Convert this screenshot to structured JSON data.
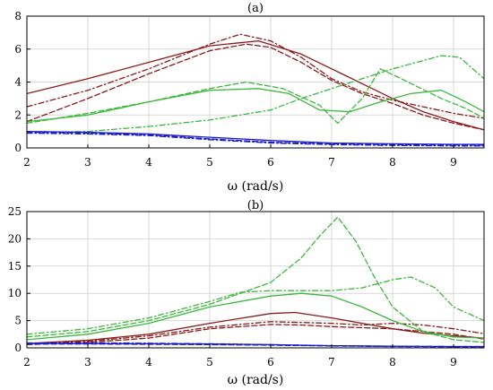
{
  "chart_data": [
    {
      "type": "line",
      "title": "(a)",
      "xlabel": "ω (rad/s)",
      "ylabel": "",
      "xlim": [
        2,
        9.5
      ],
      "ylim": [
        0,
        8
      ],
      "xticks": [
        "2",
        "3",
        "4",
        "5",
        "6",
        "7",
        "8",
        "9"
      ],
      "yticks": [
        "0",
        "2",
        "4",
        "6",
        "8"
      ],
      "grid": true,
      "series": [
        {
          "color": "#8b1a1a",
          "dash": "solid",
          "x": [
            2,
            3,
            4,
            5,
            5.8,
            6.5,
            7,
            7.5,
            8,
            8.5,
            9,
            9.5
          ],
          "y": [
            3.3,
            4.2,
            5.2,
            6.2,
            6.5,
            5.7,
            4.8,
            3.9,
            3.0,
            2.2,
            1.6,
            1.1
          ]
        },
        {
          "color": "#8b1a1a",
          "dash": "dashdot",
          "x": [
            2,
            3,
            4,
            5,
            5.5,
            6,
            6.5,
            7,
            7.5,
            8,
            8.5,
            9,
            9.5
          ],
          "y": [
            2.5,
            3.5,
            4.8,
            6.3,
            6.9,
            6.5,
            5.5,
            4.2,
            3.4,
            2.9,
            2.5,
            2.1,
            1.8
          ]
        },
        {
          "color": "#8b1a1a",
          "dash": "dashed",
          "x": [
            2,
            3,
            4,
            5,
            5.6,
            6,
            6.5,
            7,
            7.5,
            8,
            8.5,
            9,
            9.5
          ],
          "y": [
            1.6,
            3.0,
            4.5,
            5.9,
            6.3,
            6.1,
            5.2,
            4.1,
            3.3,
            2.7,
            2.0,
            1.5,
            1.1
          ]
        },
        {
          "color": "#3cb83c",
          "dash": "solid",
          "x": [
            2,
            3,
            4,
            5,
            5.8,
            6.3,
            6.8,
            7.3,
            7.8,
            8.3,
            8.8,
            9.2,
            9.5
          ],
          "y": [
            1.6,
            2.0,
            2.8,
            3.5,
            3.6,
            3.3,
            2.3,
            2.2,
            2.8,
            3.3,
            3.5,
            2.8,
            2.2
          ]
        },
        {
          "color": "#3cb83c",
          "dash": "dashed",
          "x": [
            2,
            3,
            4,
            5,
            5.6,
            6.2,
            6.8,
            7.1,
            7.5,
            7.8,
            8.2,
            8.8,
            9.2,
            9.5
          ],
          "y": [
            1.5,
            2.1,
            2.8,
            3.6,
            4.0,
            3.6,
            2.6,
            1.5,
            3.0,
            4.8,
            4.1,
            3.0,
            2.4,
            1.8
          ]
        },
        {
          "color": "#3cb83c",
          "dash": "dashdot",
          "x": [
            2,
            3,
            4,
            5,
            6,
            6.5,
            7,
            7.5,
            8,
            8.5,
            8.8,
            9.1,
            9.5
          ],
          "y": [
            0.9,
            1.0,
            1.3,
            1.7,
            2.3,
            3.0,
            3.6,
            4.2,
            4.8,
            5.3,
            5.6,
            5.5,
            4.2
          ]
        },
        {
          "color": "#1c1ccc",
          "dash": "solid",
          "x": [
            2,
            3,
            4,
            5,
            6,
            7,
            8,
            9,
            9.5
          ],
          "y": [
            1.0,
            0.95,
            0.85,
            0.65,
            0.45,
            0.3,
            0.25,
            0.22,
            0.22
          ]
        },
        {
          "color": "#1c1ccc",
          "dash": "dashed",
          "x": [
            2,
            3,
            4,
            5,
            6,
            7,
            8,
            9,
            9.5
          ],
          "y": [
            0.95,
            0.9,
            0.8,
            0.55,
            0.35,
            0.25,
            0.2,
            0.18,
            0.18
          ]
        },
        {
          "color": "#1c1ccc",
          "dash": "dashdot",
          "x": [
            2,
            3,
            4,
            5,
            6,
            7,
            8,
            9,
            9.5
          ],
          "y": [
            0.9,
            0.85,
            0.75,
            0.5,
            0.3,
            0.2,
            0.15,
            0.12,
            0.12
          ]
        }
      ]
    },
    {
      "type": "line",
      "title": "(b)",
      "xlabel": "ω (rad/s)",
      "ylabel": "",
      "xlim": [
        2,
        9.5
      ],
      "ylim": [
        0,
        25
      ],
      "xticks": [
        "2",
        "3",
        "4",
        "5",
        "6",
        "7",
        "8",
        "9"
      ],
      "yticks": [
        "0",
        "5",
        "10",
        "15",
        "20",
        "25"
      ],
      "grid": true,
      "series": [
        {
          "color": "#8b1a1a",
          "dash": "solid",
          "x": [
            2,
            3,
            4,
            5,
            6,
            6.4,
            7,
            7.5,
            8,
            8.5,
            9,
            9.5
          ],
          "y": [
            0.8,
            1.4,
            2.5,
            4.5,
            6.3,
            6.5,
            5.5,
            4.5,
            3.5,
            2.7,
            2.2,
            1.8
          ]
        },
        {
          "color": "#8b1a1a",
          "dash": "dashdot",
          "x": [
            2,
            3,
            4,
            5,
            6,
            7,
            7.5,
            8,
            8.5,
            9,
            9.5
          ],
          "y": [
            0.7,
            1.2,
            2.2,
            3.8,
            4.8,
            4.5,
            4.2,
            4.5,
            4.2,
            3.5,
            2.6
          ]
        },
        {
          "color": "#8b1a1a",
          "dash": "dashed",
          "x": [
            2,
            3,
            4,
            5,
            6,
            6.5,
            7,
            8,
            9,
            9.5
          ],
          "y": [
            0.6,
            1.0,
            1.8,
            3.5,
            4.3,
            4.2,
            3.9,
            3.5,
            2.5,
            1.6
          ]
        },
        {
          "color": "#3cb83c",
          "dash": "solid",
          "x": [
            2,
            3,
            4,
            5,
            6,
            6.5,
            7,
            7.5,
            8,
            8.5,
            9,
            9.5
          ],
          "y": [
            1.5,
            2.5,
            4.5,
            7.5,
            9.5,
            10.0,
            9.5,
            7.5,
            5.0,
            3.0,
            2.0,
            1.8
          ]
        },
        {
          "color": "#3cb83c",
          "dash": "dashed",
          "x": [
            2,
            3,
            4,
            5,
            6,
            6.5,
            6.8,
            7.1,
            7.4,
            7.7,
            8,
            8.5,
            9,
            9.5
          ],
          "y": [
            2.0,
            3.0,
            5.0,
            8.0,
            12.0,
            16.5,
            20.5,
            24.0,
            19.5,
            13.0,
            7.5,
            3.0,
            1.5,
            1.0
          ]
        },
        {
          "color": "#3cb83c",
          "dash": "dashdot",
          "x": [
            2,
            3,
            4,
            5,
            5.5,
            6,
            6.5,
            7,
            7.5,
            8,
            8.3,
            8.7,
            9,
            9.5
          ],
          "y": [
            2.5,
            3.5,
            5.5,
            8.5,
            10.2,
            10.5,
            10.5,
            10.5,
            11.0,
            12.5,
            13.0,
            11.0,
            7.5,
            5.0
          ]
        },
        {
          "color": "#1c1ccc",
          "dash": "solid",
          "x": [
            2,
            3,
            4,
            5,
            6,
            7,
            8,
            9,
            9.5
          ],
          "y": [
            0.8,
            0.8,
            0.75,
            0.7,
            0.6,
            0.4,
            0.3,
            0.25,
            0.25
          ]
        },
        {
          "color": "#1c1ccc",
          "dash": "dashed",
          "x": [
            2,
            3,
            4,
            5,
            6,
            7,
            8,
            9,
            9.5
          ],
          "y": [
            0.7,
            0.7,
            0.65,
            0.6,
            0.5,
            0.35,
            0.25,
            0.2,
            0.2
          ]
        },
        {
          "color": "#1c1ccc",
          "dash": "dashdot",
          "x": [
            2,
            3,
            4,
            5,
            6,
            7,
            8,
            9,
            9.5
          ],
          "y": [
            0.9,
            0.9,
            0.85,
            0.75,
            0.6,
            0.4,
            0.3,
            0.25,
            0.25
          ]
        }
      ]
    }
  ]
}
